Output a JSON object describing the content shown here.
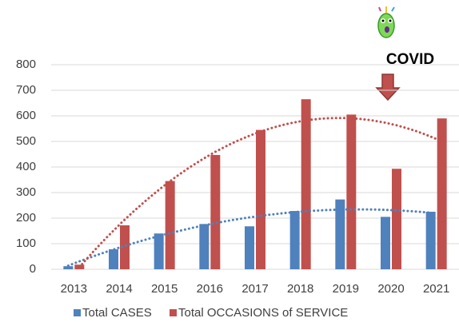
{
  "chart_data": {
    "type": "bar",
    "categories": [
      "2013",
      "2014",
      "2015",
      "2016",
      "2017",
      "2018",
      "2019",
      "2020",
      "2021"
    ],
    "series": [
      {
        "name": "Total CASES",
        "color": "#4f81bd",
        "values": [
          12,
          78,
          140,
          177,
          168,
          228,
          273,
          205,
          225
        ]
      },
      {
        "name": "Total OCCASIONS of SERVICE",
        "color": "#c0504d",
        "values": [
          18,
          172,
          345,
          447,
          545,
          665,
          605,
          393,
          590
        ]
      }
    ],
    "ylim": [
      0,
      800
    ],
    "yticks": [
      0,
      100,
      200,
      300,
      400,
      500,
      600,
      700,
      800
    ],
    "grid": true,
    "trendline": "polynomial",
    "annotation": "COVID",
    "legend": "bottom"
  }
}
